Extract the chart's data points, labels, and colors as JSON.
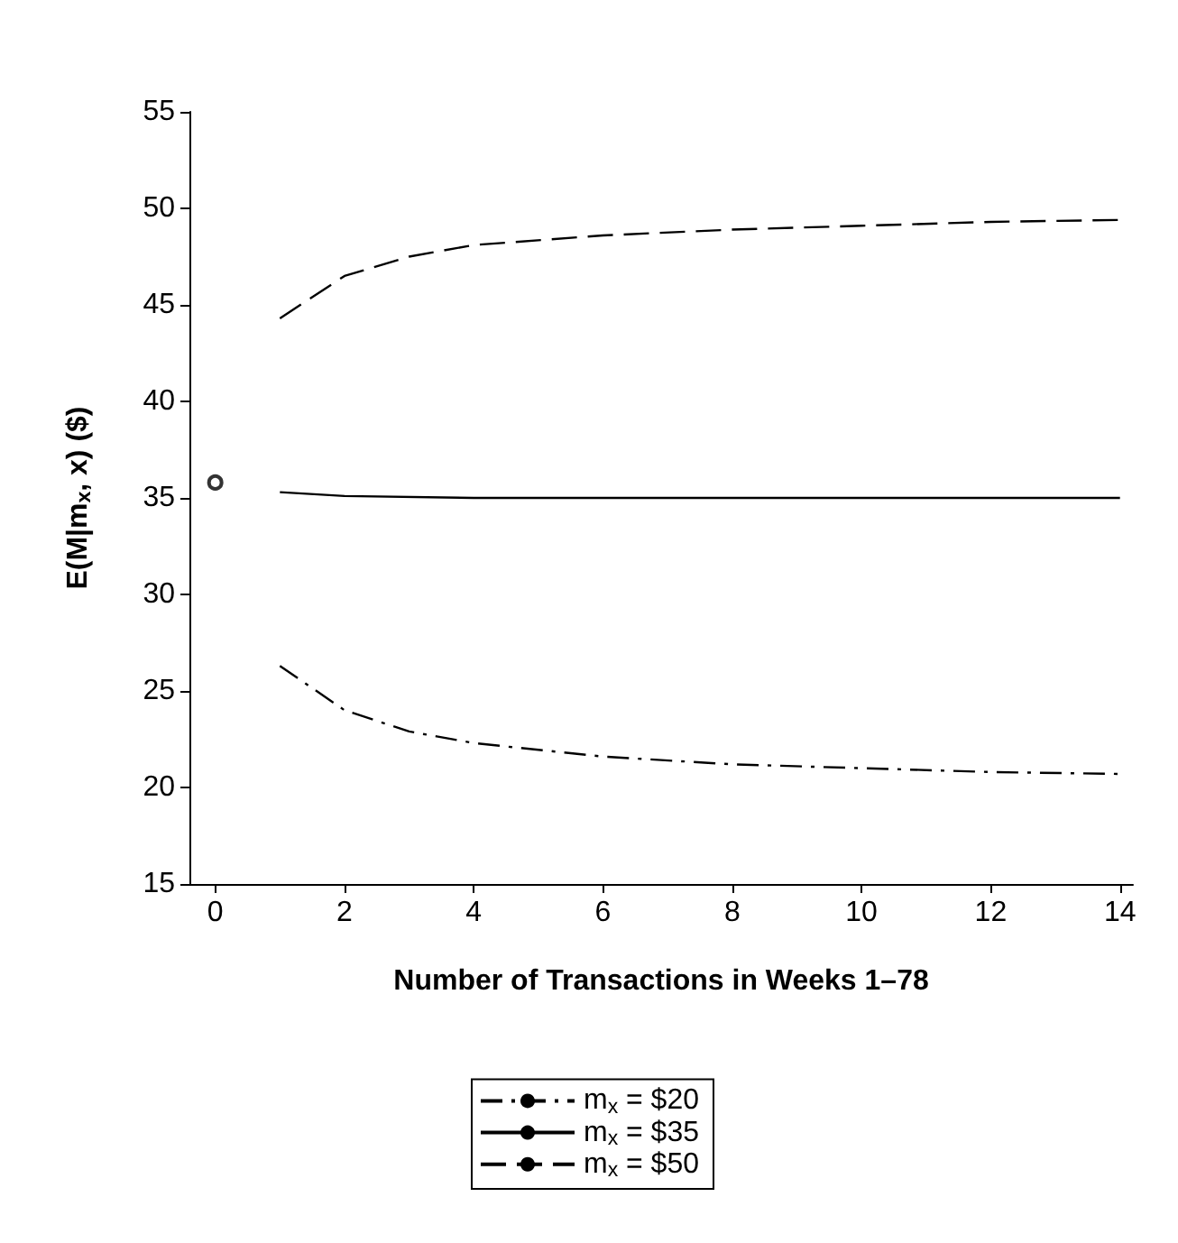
{
  "chart_data": {
    "type": "line",
    "xlabel": "Number of Transactions in Weeks 1–78",
    "ylabel": "E(M|m$_{x}$, x) ($)",
    "xlim": [
      -0.4,
      14.2
    ],
    "xticks": [
      0,
      2,
      4,
      6,
      8,
      10,
      12,
      14
    ],
    "ylim": [
      15,
      55
    ],
    "yticks": [
      15,
      20,
      25,
      30,
      35,
      40,
      45,
      50,
      55
    ],
    "grid": false,
    "legend": "bottom",
    "series": [
      {
        "name": "m$_{x}$ = $20",
        "color": "#000000",
        "line_style": "dotted",
        "marker": "none",
        "x": [
          1,
          2,
          3,
          4,
          6,
          8,
          10,
          12,
          14
        ],
        "values": [
          26.3,
          24.0,
          22.9,
          22.3,
          21.6,
          21.2,
          21.0,
          20.8,
          20.7
        ]
      },
      {
        "name": "m$_{x}$ = $35",
        "color": "#000000",
        "line_style": "solid",
        "marker": "none",
        "x": [
          1,
          2,
          4,
          8,
          14
        ],
        "values": [
          35.3,
          35.1,
          35.0,
          35.0,
          35.0
        ]
      },
      {
        "name": "m$_{x}$ = $50",
        "color": "#000000",
        "line_style": "dashed",
        "marker": "none",
        "x": [
          1,
          2,
          3,
          4,
          6,
          8,
          10,
          12,
          14
        ],
        "values": [
          44.3,
          46.5,
          47.5,
          48.1,
          48.6,
          48.9,
          49.1,
          49.3,
          49.4
        ]
      },
      {
        "type": "scatter",
        "color": "#000000",
        "marker": "circle",
        "x": [
          0
        ],
        "values": [
          35.8
        ]
      }
    ]
  }
}
